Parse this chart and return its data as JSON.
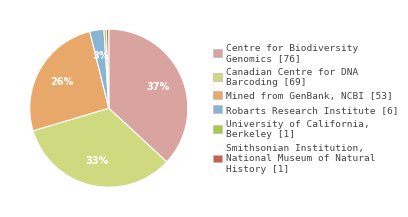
{
  "labels": [
    "Centre for Biodiversity\nGenomics [76]",
    "Canadian Centre for DNA\nBarcoding [69]",
    "Mined from GenBank, NCBI [53]",
    "Robarts Research Institute [6]",
    "University of California,\nBerkeley [1]",
    "Smithsonian Institution,\nNational Museum of Natural\nHistory [1]"
  ],
  "values": [
    76,
    69,
    53,
    6,
    1,
    1
  ],
  "colors": [
    "#d9a3a0",
    "#cfd980",
    "#e8a86a",
    "#8ab4d4",
    "#aac84a",
    "#c86050"
  ],
  "background_color": "#ffffff",
  "text_color": "#444444",
  "font_size": 7.0,
  "legend_font_size": 6.8,
  "startangle": 90
}
